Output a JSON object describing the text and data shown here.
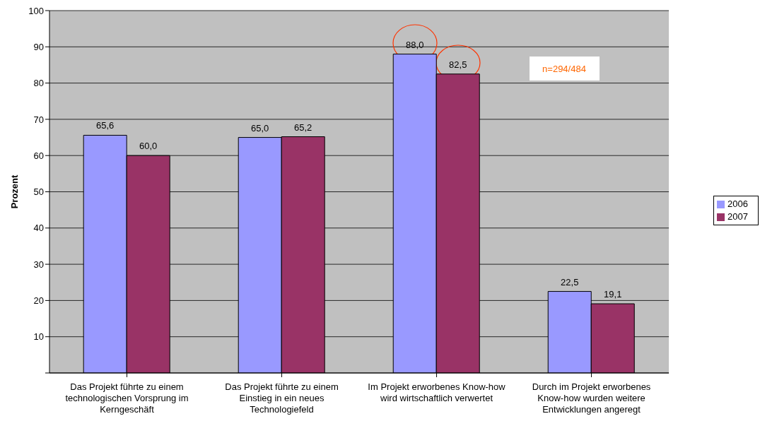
{
  "chart_data": {
    "type": "bar",
    "ylabel": "Prozent",
    "categories": [
      "Das Projekt führte zu einem technologischen Vorsprung im Kerngeschäft",
      "Das Projekt führte zu einem Einstieg in ein neues Technologiefeld",
      "Im Projekt erworbenes Know-how wird wirtschaftlich verwertet",
      "Durch im Projekt erworbenes Know-how wurden weitere Entwicklungen angeregt"
    ],
    "series": [
      {
        "name": "2006",
        "color": "#9999ff",
        "values": [
          65.6,
          65.0,
          88.0,
          22.5
        ],
        "value_labels": [
          "65,6",
          "65,0",
          "88,0",
          "22,5"
        ]
      },
      {
        "name": "2007",
        "color": "#993366",
        "values": [
          60.0,
          65.2,
          82.5,
          19.1
        ],
        "value_labels": [
          "60,0",
          "65,2",
          "82,5",
          "19,1"
        ]
      }
    ],
    "ylim": [
      0,
      100
    ],
    "yticks": [
      {
        "value": 0,
        "label": null
      },
      10,
      20,
      30,
      40,
      50,
      60,
      70,
      80,
      90,
      100
    ],
    "grid": "y",
    "legend": "right",
    "annotations": [
      "n=294/484"
    ]
  }
}
